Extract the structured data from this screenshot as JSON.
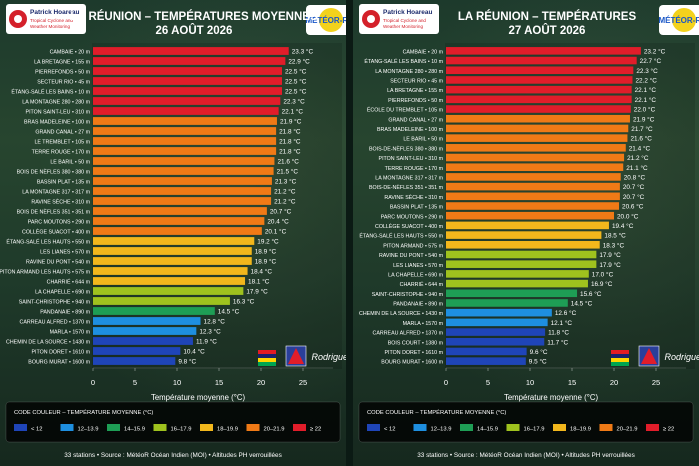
{
  "brand": {
    "name": "Patrick Hoareau",
    "subtitle_line1": "Tropical Cyclone and",
    "subtitle_line2": "Weather Monitoring"
  },
  "meteor_logo": "MÉTÉOR-ROI",
  "rodrigues_label": "Rodrigues",
  "legend": {
    "title": "CODE COULEUR – TEMPÉRATURE MOYENNE (°C)",
    "items": [
      {
        "label": "< 12",
        "color": "#1f45b8"
      },
      {
        "label": "12–13.9",
        "color": "#1e8fe0"
      },
      {
        "label": "14–15.9",
        "color": "#1e9e55"
      },
      {
        "label": "16–17.9",
        "color": "#9fc21e"
      },
      {
        "label": "18–19.9",
        "color": "#f2b71c"
      },
      {
        "label": "20–21.9",
        "color": "#f07a16"
      },
      {
        "label": "≥ 22",
        "color": "#e11d2a"
      }
    ]
  },
  "footer": "33 stations  •  Source : MétéoR Océan Indien (MOI)  •  Altitudes PH verrouillées",
  "chart_data": [
    {
      "type": "bar",
      "title": "LA RÉUNION – TEMPÉRATURES MOYENNES",
      "subtitle": "26 AOÛT 2026",
      "xlabel": "Température moyenne (°C)",
      "xlim": [
        0,
        25
      ],
      "xticks": [
        0,
        5,
        10,
        15,
        20,
        25
      ],
      "categories": [
        "CAMBAIE • 20 m",
        "LA BRETAGNE • 155 m",
        "PIERREFONDS • 50 m",
        "SECTEUR RIO • 45 m",
        "ÉTANG-SALÉ LES BAINS • 10 m",
        "LA MONTAGNE 280 • 280 m",
        "PITON SAINT-LEU • 310 m",
        "BRAS MADELEINE • 100 m",
        "GRAND CANAL • 27 m",
        "LE TREMBLET • 105 m",
        "TERRE ROUGE • 170 m",
        "LE BARIL • 50 m",
        "BOIS DE NÈFLES 380 • 380 m",
        "BASSIN PLAT • 135 m",
        "LA MONTAGNE 317 • 317 m",
        "RAVINE SÈCHE • 310 m",
        "BOIS DE NÈFLES 351 • 351 m",
        "PARC MOUTONS • 290 m",
        "COLLÈGE SUACOT • 400 m",
        "ÉTANG-SALÉ LES HAUTS • 550 m",
        "LES LIANES • 570 m",
        "RAVINE DU PONT • 540 m",
        "PITON ARMAND LES HAUTS • 575 m",
        "CHARRIÉ • 644 m",
        "LA CHAPELLE • 690 m",
        "SAINT-CHRISTOPHE • 940 m",
        "PANDANAIE • 890 m",
        "CARREAU ALFRED • 1370 m",
        "MARLA • 1570 m",
        "CHEMIN DE LA SOURCE • 1430 m",
        "PITON DORET • 1610 m",
        "BOURG MURAT • 1600 m"
      ],
      "values": [
        23.3,
        22.9,
        22.5,
        22.5,
        22.5,
        22.3,
        22.1,
        21.9,
        21.8,
        21.8,
        21.8,
        21.6,
        21.5,
        21.3,
        21.2,
        21.2,
        20.7,
        20.4,
        20.1,
        19.2,
        18.9,
        18.9,
        18.4,
        18.1,
        17.9,
        16.3,
        14.5,
        12.8,
        12.3,
        11.9,
        10.4,
        9.8
      ],
      "value_labels": [
        "23.3 °C",
        "22.9 °C",
        "22.5 °C",
        "22.5 °C",
        "22.5 °C",
        "22.3 °C",
        "22.1 °C",
        "21.9 °C",
        "21.8 °C",
        "21.8 °C",
        "21.8 °C",
        "21.6 °C",
        "21.5 °C",
        "21.3 °C",
        "21.2 °C",
        "21.2 °C",
        "20.7 °C",
        "20.4 °C",
        "20.1 °C",
        "19.2 °C",
        "18.9 °C",
        "18.9 °C",
        "18.4 °C",
        "18.1 °C",
        "17.9 °C",
        "16.3 °C",
        "14.5 °C",
        "12.8 °C",
        "12.3 °C",
        "11.9 °C",
        "10.4 °C",
        "9.8 °C"
      ]
    },
    {
      "type": "bar",
      "title": "LA RÉUNION – TEMPÉRATURES",
      "subtitle": "27 AOÛT 2026",
      "xlabel": "Température moyenne (°C)",
      "xlim": [
        0,
        25
      ],
      "xticks": [
        0,
        5,
        10,
        15,
        20,
        25
      ],
      "categories": [
        "CAMBAIE • 20 m",
        "ÉTANG-SALÉ LES BAINS • 10 m",
        "LA MONTAGNE 280 • 280 m",
        "SECTEUR RIO • 45 m",
        "LA BRETAGNE • 155 m",
        "PIERREFONDS • 50 m",
        "ÉCOLE DU TREMBLET • 105 m",
        "GRAND CANAL • 27 m",
        "BRAS MADELEINE • 100 m",
        "LE BARIL • 50 m",
        "BOIS-DE-NÈFLES 380 • 380 m",
        "PITON SAINT-LEU • 310 m",
        "TERRE ROUGE • 170 m",
        "LA MONTAGNE 317 • 317 m",
        "BOIS-DE-NÈFLES 351 • 351 m",
        "RAVINE SÈCHE • 310 m",
        "BASSIN PLAT • 135 m",
        "PARC MOUTONS • 290 m",
        "COLLÈGE SUACOT • 400 m",
        "ÉTANG-SALÉ LES HAUTS • 550 m",
        "PITON ARMAND • 575 m",
        "RAVINE DU PONT • 540 m",
        "LES LIANES • 570 m",
        "LA CHAPELLE • 690 m",
        "CHARRIÉ • 644 m",
        "SAINT-CHRISTOPHE • 940 m",
        "PANDANAIE • 890 m",
        "CHEMIN DE LA SOURCE • 1430 m",
        "MARLA • 1570 m",
        "CARREAU ALFRED • 1370 m",
        "BOIS COURT • 1380 m",
        "PITON DORET • 1610 m",
        "BOURG MURAT • 1600 m"
      ],
      "values": [
        23.2,
        22.7,
        22.3,
        22.2,
        22.1,
        22.1,
        22.0,
        21.9,
        21.7,
        21.6,
        21.4,
        21.2,
        21.1,
        20.8,
        20.7,
        20.7,
        20.6,
        20.0,
        19.4,
        18.5,
        18.3,
        17.9,
        17.9,
        17.0,
        16.9,
        15.6,
        14.5,
        12.6,
        12.1,
        11.8,
        11.7,
        9.6,
        9.5
      ],
      "value_labels": [
        "23.2 °C",
        "22.7 °C",
        "22.3 °C",
        "22.2 °C",
        "22.1 °C",
        "22.1 °C",
        "22.0 °C",
        "21.9 °C",
        "21.7 °C",
        "21.6 °C",
        "21.4 °C",
        "21.2 °C",
        "21.1 °C",
        "20.8 °C",
        "20.7 °C",
        "20.7 °C",
        "20.6 °C",
        "20.0 °C",
        "19.4 °C",
        "18.5 °C",
        "18.3 °C",
        "17.9 °C",
        "17.9 °C",
        "17.0 °C",
        "16.9 °C",
        "15.6 °C",
        "14.5 °C",
        "12.6 °C",
        "12.1 °C",
        "11.8 °C",
        "11.7 °C",
        "9.6 °C",
        "9.5 °C"
      ]
    }
  ]
}
